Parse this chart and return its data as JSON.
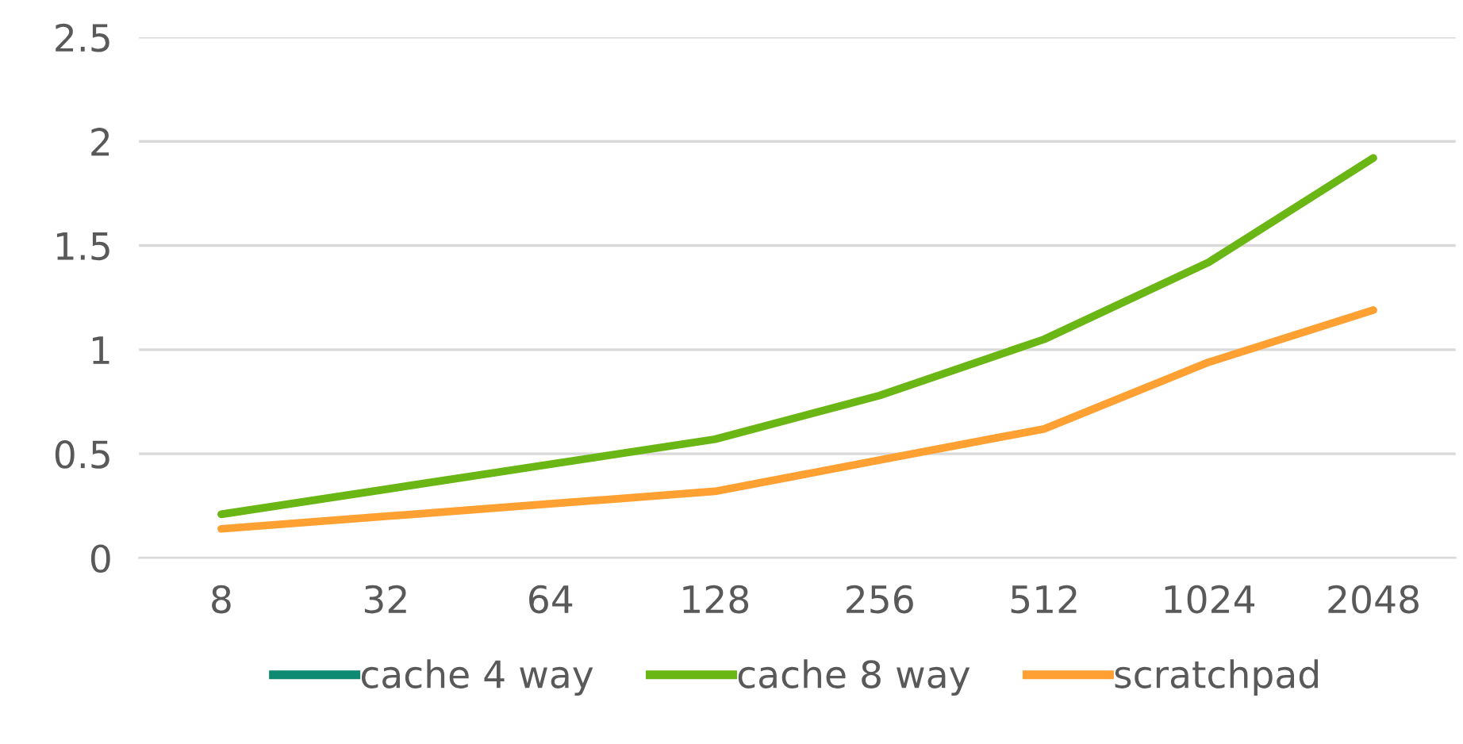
{
  "chart_data": {
    "type": "line",
    "categories": [
      "8",
      "32",
      "64",
      "128",
      "256",
      "512",
      "1024",
      "2048"
    ],
    "series": [
      {
        "name": "cache 4 way",
        "color": "#0e8a72",
        "values": [
          null,
          null,
          null,
          null,
          null,
          null,
          null,
          null
        ]
      },
      {
        "name": "cache 8 way",
        "color": "#6ab614",
        "values": [
          0.21,
          0.33,
          0.45,
          0.57,
          0.78,
          1.05,
          1.42,
          1.92
        ]
      },
      {
        "name": "scratchpad",
        "color": "#ffa033",
        "values": [
          0.14,
          0.2,
          0.26,
          0.32,
          0.47,
          0.62,
          0.94,
          1.19
        ]
      }
    ],
    "ylim": [
      0,
      2.5
    ],
    "yticks": [
      0,
      0.5,
      1,
      1.5,
      2,
      2.5
    ],
    "grid": "y",
    "legend": "bottom",
    "marker": "none",
    "line_style": "solid"
  }
}
